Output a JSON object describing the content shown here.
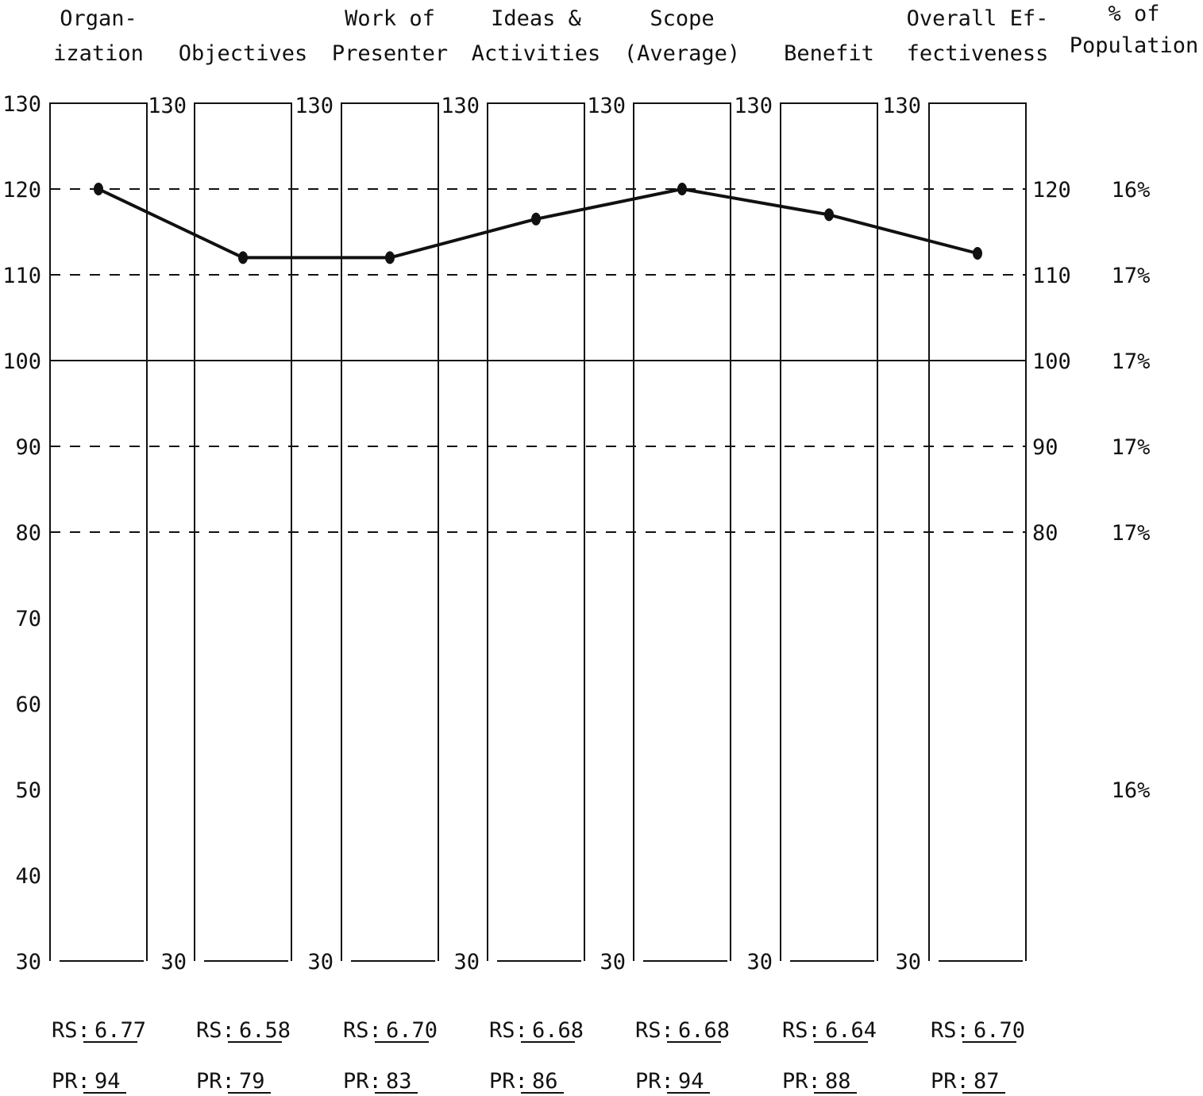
{
  "chart_data": {
    "type": "line",
    "categories": [
      [
        "Organ-",
        "ization"
      ],
      [
        "Objectives"
      ],
      [
        "Work of",
        "Presenter"
      ],
      [
        "Ideas &",
        "Activities"
      ],
      [
        "Scope",
        "(Average)"
      ],
      [
        "Benefit"
      ],
      [
        "Overall Ef-",
        "fectiveness"
      ]
    ],
    "values": [
      120,
      112,
      112,
      116.5,
      120,
      117,
      112.5
    ],
    "ylim": [
      30,
      130
    ],
    "yticks": [
      130,
      120,
      110,
      100,
      90,
      80,
      70,
      60,
      50,
      40,
      30
    ],
    "column_tick_labels": [
      "130",
      "30"
    ],
    "right_tick_labels": [
      "120",
      "110",
      "100",
      "90",
      "80"
    ],
    "reference_lines": [
      {
        "value": 120,
        "style": "dashed"
      },
      {
        "value": 110,
        "style": "dashed"
      },
      {
        "value": 100,
        "style": "solid"
      },
      {
        "value": 90,
        "style": "dashed"
      },
      {
        "value": 80,
        "style": "dashed"
      }
    ],
    "population_header": [
      "% of",
      "Population"
    ],
    "population_bands": [
      {
        "at": 120,
        "label": "16%"
      },
      {
        "at": 110,
        "label": "17%"
      },
      {
        "at": 100,
        "label": "17%"
      },
      {
        "at": 90,
        "label": "17%"
      },
      {
        "at": 80,
        "label": "17%"
      },
      {
        "at": 50,
        "label": "16%"
      }
    ],
    "scores": [
      {
        "rs": "6.77",
        "pr": "94"
      },
      {
        "rs": "6.58",
        "pr": "79"
      },
      {
        "rs": "6.70",
        "pr": "83"
      },
      {
        "rs": "6.68",
        "pr": "86"
      },
      {
        "rs": "6.68",
        "pr": "94"
      },
      {
        "rs": "6.64",
        "pr": "88"
      },
      {
        "rs": "6.70",
        "pr": "87"
      }
    ],
    "rs_label": "RS:",
    "pr_label": "PR:",
    "grid": false
  }
}
